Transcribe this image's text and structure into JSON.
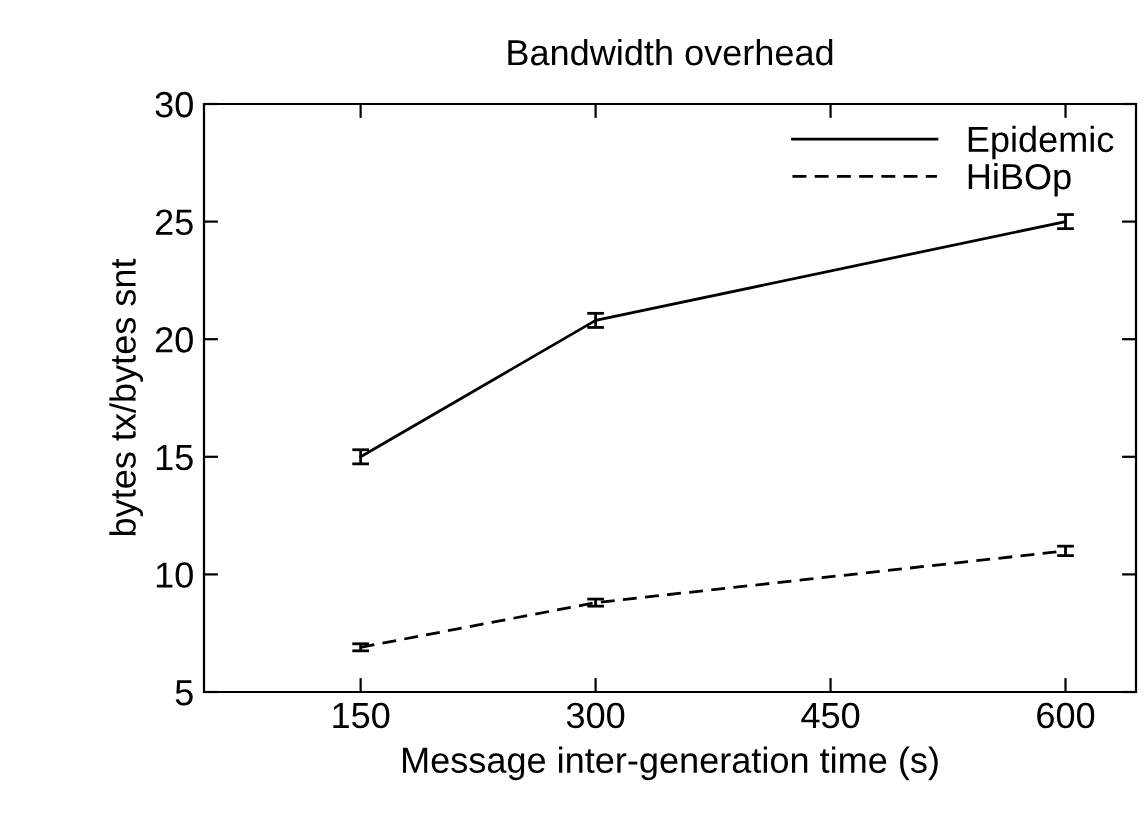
{
  "chart_data": {
    "type": "line",
    "title": "Bandwidth overhead",
    "xlabel": "Message inter-generation time (s)",
    "ylabel": "bytes tx/bytes snt",
    "x": [
      150,
      300,
      600
    ],
    "series": [
      {
        "name": "Epidemic",
        "color": "#000000",
        "values": [
          15.0,
          20.8,
          25.0
        ],
        "errors": [
          0.3,
          0.3,
          0.3
        ],
        "line_style": "solid"
      },
      {
        "name": "HiBOp",
        "color": "#000000",
        "values": [
          6.9,
          8.8,
          11.0
        ],
        "errors": [
          0.15,
          0.15,
          0.2
        ],
        "line_style": "dashed"
      }
    ],
    "xlim": [
      50,
      645
    ],
    "xticks": [
      150,
      300,
      450,
      600
    ],
    "ylim": [
      5,
      30
    ],
    "yticks": [
      5,
      10,
      15,
      20,
      25,
      30
    ],
    "legend": "top right",
    "grid": false
  }
}
